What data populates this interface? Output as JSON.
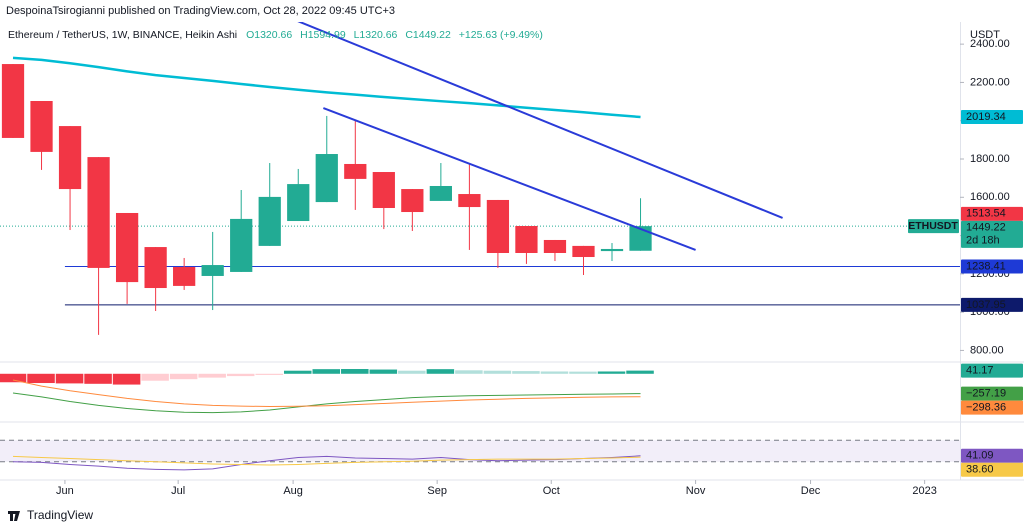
{
  "header": {
    "publisher": "DespoinaTsirogianni published on TradingView.com, Oct 28, 2022 09:45 UTC+3",
    "footer": "TradingView"
  },
  "chart_data": [
    {
      "type": "candlestick",
      "title": "Ethereum / TetherUS, 1W, BINANCE, Heikin Ashi",
      "legend_values": [
        "O1320.66",
        "H1594.99",
        "L1320.66",
        "C1449.22",
        "+125.63 (+9.49%)"
      ],
      "y_unit": "USDT",
      "categories": [
        null,
        null,
        null,
        null,
        null,
        null,
        null,
        null,
        null,
        null,
        null,
        null,
        null,
        null,
        null,
        null,
        null,
        null,
        null,
        null,
        null,
        null,
        null
      ],
      "open": [
        2296,
        2103,
        1972,
        1810,
        1518,
        1340,
        1236,
        1189,
        1210,
        1346,
        1476,
        1575,
        1774,
        1732,
        1643,
        1581,
        1617,
        1586,
        1450,
        1377,
        1346,
        1319,
        1320.66
      ],
      "high": [
        2296,
        2103,
        1972,
        1810,
        1518,
        1340,
        1283,
        1419,
        1638,
        1779,
        1748,
        2025,
        2004,
        1732,
        1643,
        1779,
        1774,
        1586,
        1450,
        1377,
        1346,
        1361,
        1594.99
      ],
      "low": [
        1910,
        1743,
        1429,
        881,
        1043,
        1006,
        1116,
        1011,
        1210,
        1346,
        1476,
        1575,
        1534,
        1434,
        1424,
        1581,
        1325,
        1231,
        1252,
        1267,
        1194,
        1267,
        1320.66
      ],
      "close": [
        1910,
        1837,
        1643,
        1231,
        1157,
        1126,
        1137,
        1246,
        1487,
        1602,
        1669,
        1826,
        1696,
        1544,
        1523,
        1659,
        1549,
        1309,
        1309,
        1309,
        1288,
        1330,
        1449.22
      ],
      "up_color": "#22ab94",
      "down_color": "#f23645",
      "overlay": {
        "color": "#00bcd4",
        "values": [
          2328,
          2318,
          2300,
          2280,
          2258,
          2238,
          2223,
          2208,
          2192,
          2176,
          2162,
          2148,
          2136,
          2124,
          2113,
          2102,
          2092,
          2080,
          2068,
          2056,
          2044,
          2031,
          2019.34
        ]
      },
      "hlines": [
        {
          "value": 1238.41,
          "color": "#1e3ad6"
        },
        {
          "value": 1037.95,
          "color": "#0d1a6b"
        }
      ],
      "trendlines": [
        {
          "x": [
            9.89,
            26.98
          ],
          "y": [
            2526,
            1492
          ],
          "color": "#2a3bd8"
        },
        {
          "x": [
            10.88,
            23.93
          ],
          "y": [
            2066,
            1325
          ],
          "color": "#2a3bd8"
        }
      ],
      "price_tags": [
        {
          "value": 1513.54,
          "color": "#f23645"
        }
      ],
      "last_price": {
        "symbol": "ETHUSDT",
        "value": 1449.22,
        "countdown": "2d 18h",
        "color": "#22ab94"
      },
      "xlim": [
        -0.456,
        33.2
      ],
      "xticks": [
        {
          "value": 1.82,
          "label": "Jun"
        },
        {
          "value": 5.79,
          "label": "Jul"
        },
        {
          "value": 9.82,
          "label": "Aug"
        },
        {
          "value": 14.87,
          "label": "Sep"
        },
        {
          "value": 18.87,
          "label": "Oct"
        },
        {
          "value": 23.93,
          "label": "Nov"
        },
        {
          "value": 27.96,
          "label": "Dec"
        },
        {
          "value": 31.96,
          "label": "2023"
        }
      ],
      "ylim": [
        750,
        2500
      ],
      "yticks": [
        {
          "value": 800,
          "label": "800.00"
        },
        {
          "value": 1000,
          "label": "1000.00"
        },
        {
          "value": 1200,
          "label": "1200.00"
        },
        {
          "value": 1400,
          "label": "1400.00"
        },
        {
          "value": 1600,
          "label": "1600.00"
        },
        {
          "value": 1800,
          "label": "1800.00"
        },
        {
          "value": 2000,
          "label": "2000.00"
        },
        {
          "value": 2200,
          "label": "2200.00"
        },
        {
          "value": 2400,
          "label": "2400.00"
        }
      ]
    },
    {
      "type": "macd",
      "ylim": [
        -600,
        140
      ],
      "histogram": {
        "values": [
          -110,
          -120,
          -125,
          -130,
          -140,
          -90,
          -70,
          -50,
          -30,
          -15,
          40,
          60,
          62,
          55,
          40,
          60,
          45,
          40,
          35,
          30,
          28,
          30,
          41.17
        ],
        "colors": [
          "#f23645",
          "#f23645",
          "#f23645",
          "#f23645",
          "#f23645",
          "#ffcdd2",
          "#ffcdd2",
          "#ffcdd2",
          "#ffcdd2",
          "#ffcdd2",
          "#22ab94",
          "#22ab94",
          "#22ab94",
          "#22ab94",
          "#b2dfdb",
          "#22ab94",
          "#b2dfdb",
          "#b2dfdb",
          "#b2dfdb",
          "#b2dfdb",
          "#b2dfdb",
          "#22ab94",
          "#22ab94"
        ]
      },
      "lines": [
        {
          "color": "#43a047",
          "values": [
            -250,
            -300,
            -360,
            -410,
            -450,
            -480,
            -500,
            -505,
            -495,
            -470,
            -430,
            -390,
            -360,
            -335,
            -310,
            -295,
            -285,
            -280,
            -275,
            -270,
            -265,
            -262,
            -257.19
          ],
          "last_label": "−257.19"
        },
        {
          "color": "#ff8a3d",
          "values": [
            -80,
            -160,
            -220,
            -270,
            -320,
            -360,
            -390,
            -410,
            -420,
            -425,
            -422,
            -415,
            -400,
            -385,
            -370,
            -355,
            -340,
            -330,
            -320,
            -312,
            -305,
            -300,
            -298.36
          ],
          "last_label": "−298.36"
        }
      ]
    },
    {
      "type": "rsi",
      "ylim": [
        0,
        100
      ],
      "levels": [
        70,
        30
      ],
      "band_color": "#7e57c2",
      "lines": [
        {
          "color": "#7e57c2",
          "values": [
            30,
            29,
            25,
            22,
            18,
            16,
            15,
            17,
            25,
            32,
            38,
            40,
            37,
            36,
            35,
            38,
            34,
            32,
            33,
            34,
            36,
            38,
            41.09
          ]
        },
        {
          "color": "#f7c948",
          "values": [
            40,
            38,
            36,
            34,
            32,
            30,
            28,
            26,
            25,
            24,
            25,
            27,
            29,
            30,
            31,
            33,
            34,
            35,
            35,
            35,
            36,
            37,
            38.6
          ],
          "last_label": "38.60"
        }
      ]
    }
  ]
}
